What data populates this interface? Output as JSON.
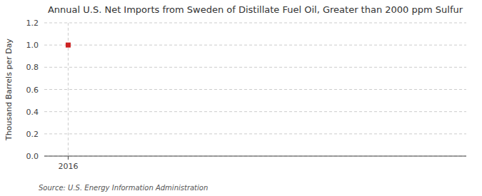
{
  "chart_data": {
    "type": "scatter",
    "title": "Annual U.S. Net Imports from Sweden of Distillate Fuel Oil, Greater than 2000 ppm Sulfur",
    "ylabel": "Thousand Barrels per Day",
    "source": "Source: U.S. Energy Information Administration",
    "x": [
      2016
    ],
    "values": [
      1.0
    ],
    "color": "#cc2222",
    "marker": "square",
    "xlim": [
      2015.7,
      2021.0
    ],
    "ylim": [
      0.0,
      1.2
    ],
    "xticks": [
      2016
    ],
    "yticks": [
      {
        "value": 0.0,
        "label": "0.0"
      },
      0.2,
      0.4,
      0.6,
      0.8,
      {
        "value": 1.0,
        "label": "1.0"
      },
      1.2
    ],
    "grid": true
  }
}
